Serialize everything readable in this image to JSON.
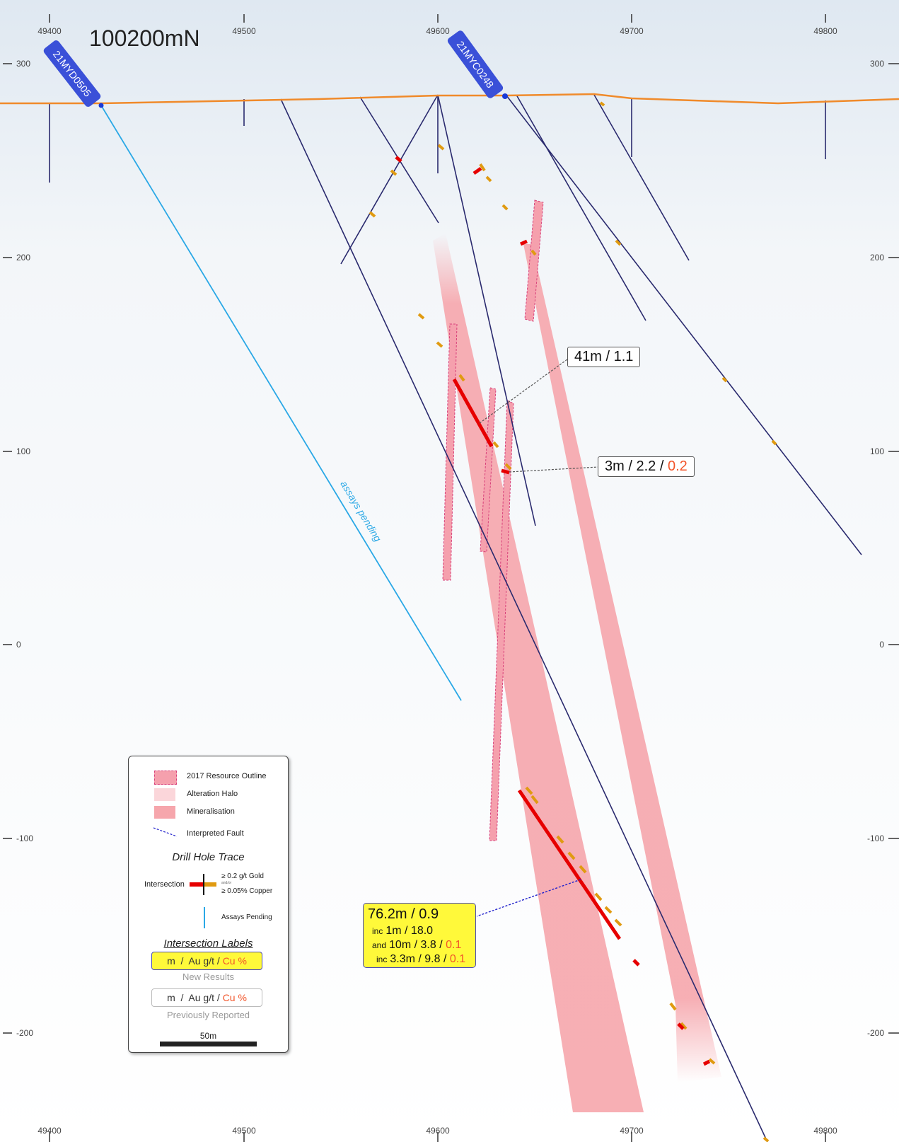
{
  "section_label": "100200mN",
  "easting_ticks": [
    "49400",
    "49500",
    "49600",
    "49700",
    "49800"
  ],
  "rl_ticks": [
    "300",
    "200",
    "100",
    "0",
    "-100",
    "-200"
  ],
  "drill_holes": [
    {
      "id": "21MYD0505",
      "annotation": "assays pending"
    },
    {
      "id": "21MYC0248"
    }
  ],
  "intersections": [
    {
      "length": "41m",
      "au": "1.1"
    },
    {
      "length": "3m",
      "au": "2.2",
      "cu": "0.2"
    }
  ],
  "new_result": {
    "main": {
      "length": "76.2m",
      "au": "0.9"
    },
    "lines": [
      {
        "prefix": "inc",
        "length": "1m",
        "au": "18.0"
      },
      {
        "prefix": "and",
        "length": "10m",
        "au": "3.8",
        "cu": "0.1"
      },
      {
        "prefix": "inc",
        "length": "3.3m",
        "au": "9.8",
        "cu": "0.1"
      }
    ]
  },
  "legend": {
    "resource_outline": "2017 Resource Outline",
    "alteration_halo": "Alteration Halo",
    "mineralisation": "Mineralisation",
    "interpreted_fault": "Interpreted Fault",
    "drill_hole_trace": "Drill Hole Trace",
    "intersection": "Intersection",
    "gold_threshold": "≥ 0.2 g/t Gold",
    "and_or": "and/or",
    "copper_threshold": "≥ 0.05% Copper",
    "assays_pending": "Assays Pending",
    "intersection_labels": "Intersection Labels",
    "label_m": "m",
    "label_sep": "/",
    "label_au": "Au g/t",
    "label_cu": "Cu %",
    "new_results": "New Results",
    "previously_reported": "Previously Reported",
    "scale": "50m"
  },
  "colors": {
    "topography": "#f08a2a",
    "drill_trace": "#2a2a6e",
    "assays_pending": "#2aa8e6",
    "intersection_gold": "#e60000",
    "intersection_copper": "#e09a10",
    "mineralisation": "#f6a6ac",
    "resource_outline": "#d8407a",
    "new_result_box": "#fff93a",
    "hole_tag": "#3a50d8"
  }
}
